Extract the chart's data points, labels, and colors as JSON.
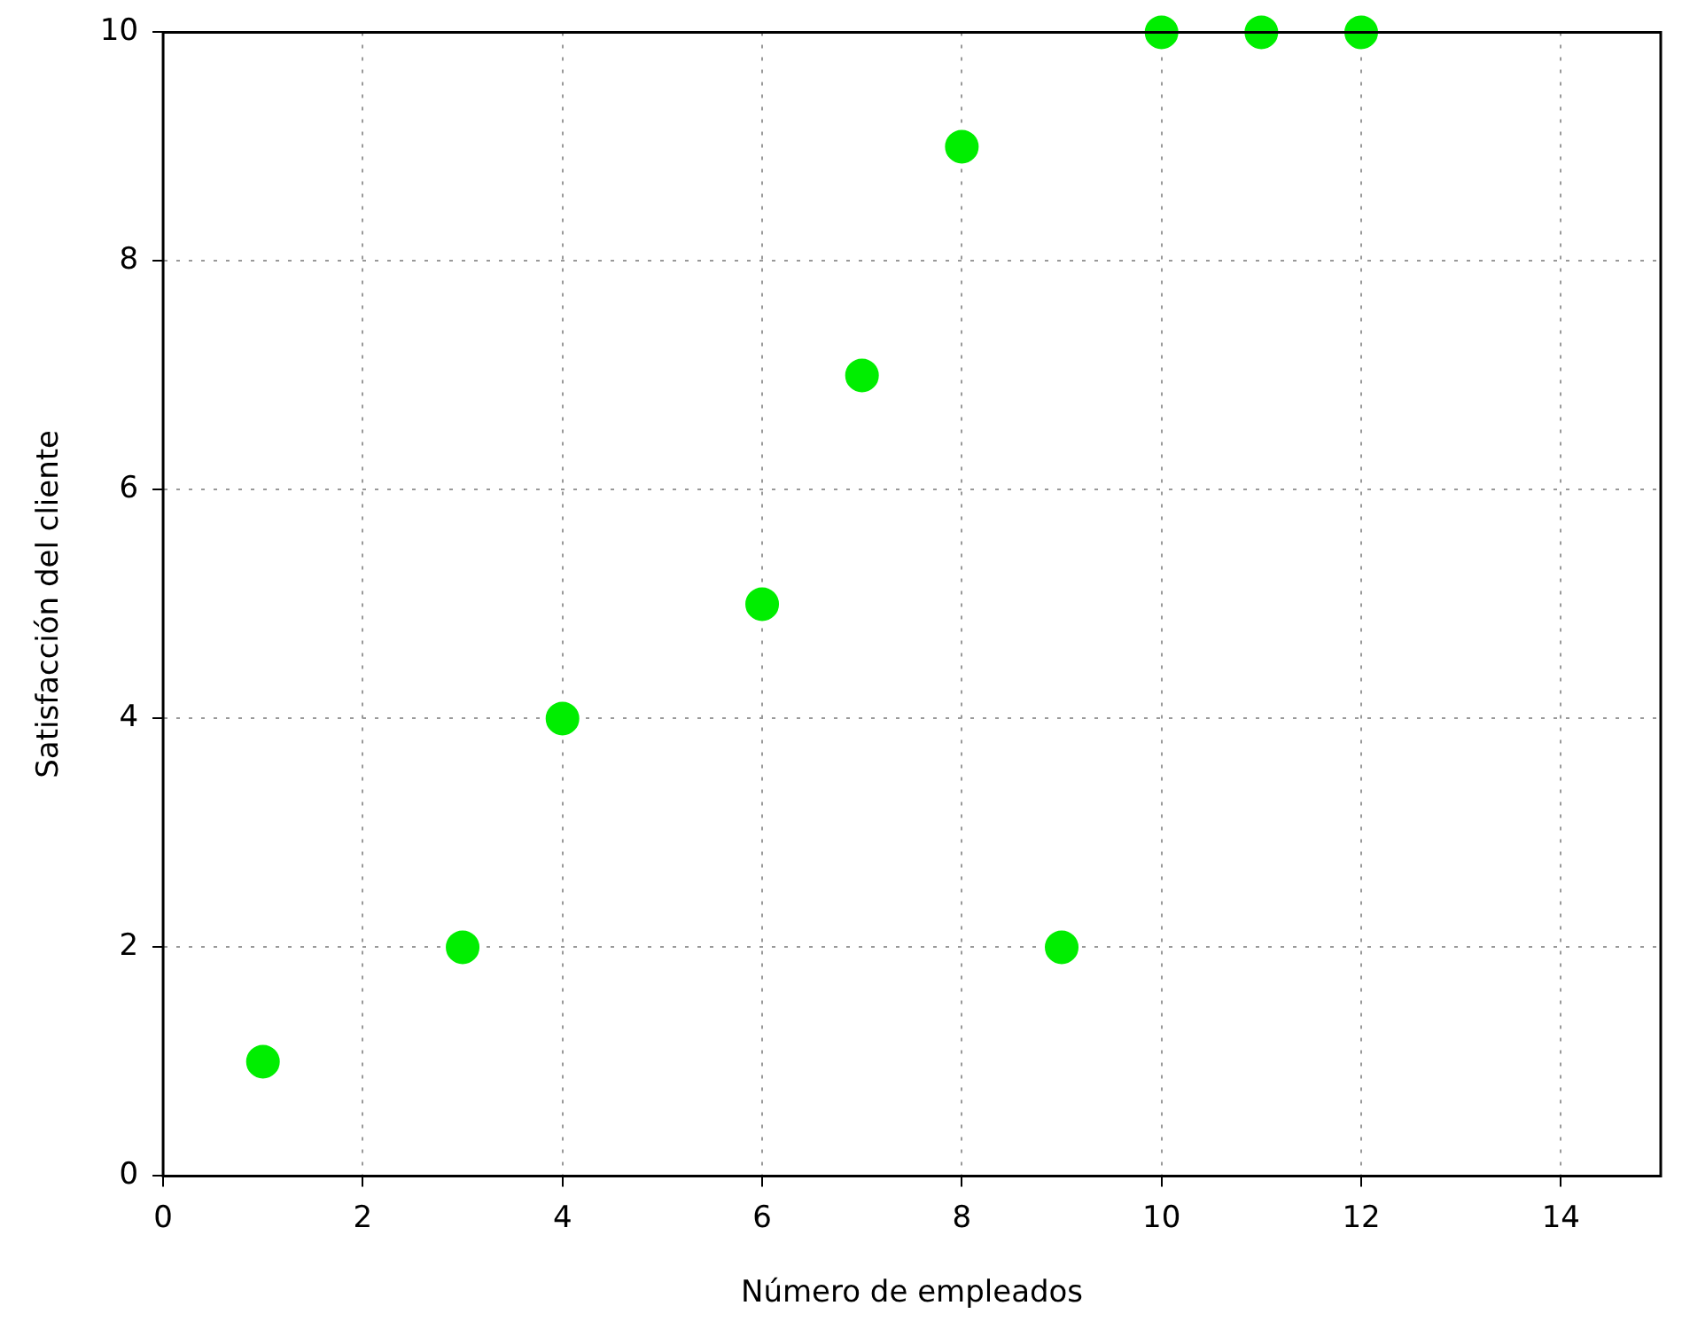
{
  "chart_data": {
    "type": "scatter",
    "xlabel": "Número de empleados",
    "ylabel": "Satisfacción del cliente",
    "x": [
      1,
      3,
      4,
      6,
      7,
      8,
      9,
      10,
      11,
      12
    ],
    "series": [
      {
        "color": "#00ee00",
        "values": [
          1,
          2,
          4,
          5,
          7,
          9,
          2,
          10,
          10,
          10
        ]
      }
    ],
    "xlim": [
      0,
      15
    ],
    "xticks": [
      0,
      2,
      4,
      6,
      8,
      10,
      12,
      14
    ],
    "ylim": [
      0,
      10
    ],
    "yticks": [
      0,
      2,
      4,
      6,
      8,
      10
    ],
    "grid": true,
    "legend": false,
    "marker": "circle"
  }
}
